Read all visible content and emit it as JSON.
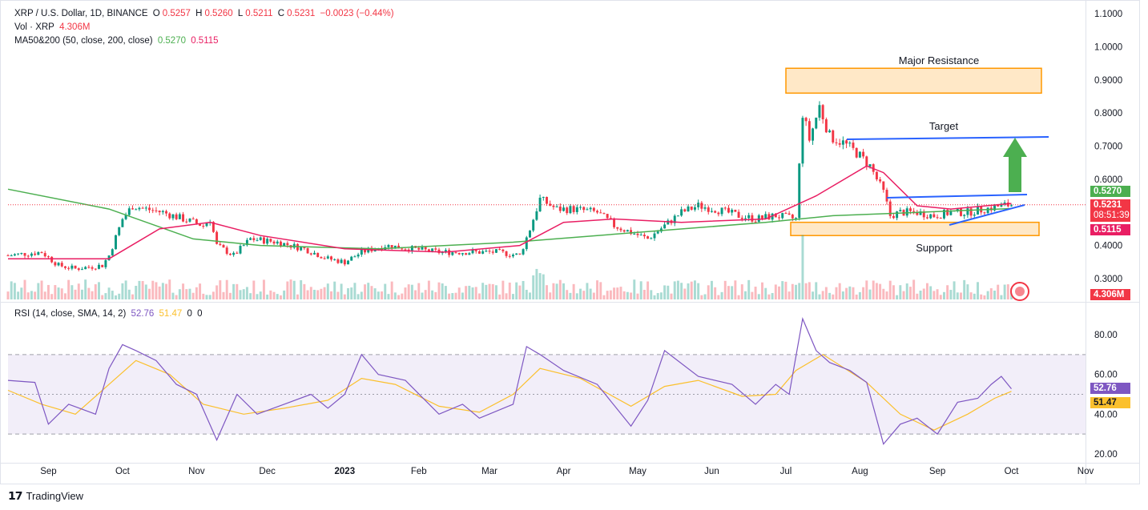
{
  "header": {
    "symbol": "XRP / U.S. Dollar, 1D, BINANCE",
    "o_label": "O",
    "o_value": "0.5257",
    "h_label": "H",
    "h_value": "0.5260",
    "l_label": "L",
    "l_value": "0.5211",
    "c_label": "C",
    "c_value": "0.5231",
    "change": "−0.0023 (−0.44%)",
    "vol_label": "Vol · XRP",
    "vol_value": "4.306M",
    "ma_label": "MA50&200 (50, close, 200, close)",
    "ma50_value": "0.5270",
    "ma200_value": "0.5115"
  },
  "rsi_header": {
    "label": "RSI (14, close, SMA, 14, 2)",
    "rsi": "52.76",
    "sma": "51.47",
    "z1": "0",
    "z2": "0"
  },
  "badges": {
    "ma50": "0.5270",
    "price": "0.5231",
    "countdown": "08:51:39",
    "ma200": "0.5115",
    "volume": "4.306M",
    "rsi": "52.76",
    "rsi_sma": "51.47"
  },
  "annotations": {
    "resistance": "Major Resistance",
    "target": "Target",
    "support": "Support"
  },
  "brand": "TradingView",
  "colors": {
    "up": "#089981",
    "down": "#f23645",
    "ma50": "#4caf50",
    "ma200": "#e91e63",
    "zone": "#ff9800",
    "line": "#2962ff",
    "arrow": "#4caf50",
    "rsi": "#7e57c2",
    "rsi_sma": "#fbc02d"
  },
  "chart_data": [
    {
      "type": "candlestick",
      "title": "XRP / U.S. Dollar, 1D, BINANCE",
      "y_ticks": [
        "1.1000",
        "1.0000",
        "0.9000",
        "0.8000",
        "0.7000",
        "0.6000",
        "0.4000",
        "0.3000"
      ],
      "ylim": [
        0.25,
        1.12
      ],
      "x_ticks": [
        "Sep",
        "Oct",
        "Nov",
        "Dec",
        "2023",
        "Feb",
        "Mar",
        "Apr",
        "May",
        "Jun",
        "Jul",
        "Aug",
        "Sep",
        "Oct",
        "Nov"
      ],
      "close_path": [
        [
          0,
          0.37
        ],
        [
          10,
          0.38
        ],
        [
          15,
          0.34
        ],
        [
          20,
          0.33
        ],
        [
          28,
          0.34
        ],
        [
          30,
          0.37
        ],
        [
          34,
          0.48
        ],
        [
          37,
          0.52
        ],
        [
          41,
          0.51
        ],
        [
          46,
          0.5
        ],
        [
          52,
          0.48
        ],
        [
          58,
          0.46
        ],
        [
          60,
          0.48
        ],
        [
          62,
          0.4
        ],
        [
          67,
          0.37
        ],
        [
          72,
          0.42
        ],
        [
          80,
          0.41
        ],
        [
          88,
          0.39
        ],
        [
          95,
          0.36
        ],
        [
          100,
          0.35
        ],
        [
          105,
          0.38
        ],
        [
          112,
          0.4
        ],
        [
          120,
          0.39
        ],
        [
          128,
          0.38
        ],
        [
          135,
          0.38
        ],
        [
          145,
          0.38
        ],
        [
          152,
          0.37
        ],
        [
          155,
          0.45
        ],
        [
          158,
          0.54
        ],
        [
          163,
          0.51
        ],
        [
          168,
          0.51
        ],
        [
          175,
          0.5
        ],
        [
          180,
          0.46
        ],
        [
          185,
          0.44
        ],
        [
          190,
          0.42
        ],
        [
          195,
          0.46
        ],
        [
          200,
          0.5
        ],
        [
          205,
          0.52
        ],
        [
          210,
          0.51
        ],
        [
          217,
          0.49
        ],
        [
          222,
          0.48
        ],
        [
          228,
          0.49
        ],
        [
          234,
          0.48
        ],
        [
          236,
          0.8
        ],
        [
          238,
          0.72
        ],
        [
          241,
          0.82
        ],
        [
          244,
          0.73
        ],
        [
          248,
          0.71
        ],
        [
          252,
          0.68
        ],
        [
          256,
          0.64
        ],
        [
          260,
          0.56
        ],
        [
          262,
          0.49
        ],
        [
          265,
          0.5
        ],
        [
          270,
          0.5
        ],
        [
          275,
          0.49
        ],
        [
          280,
          0.5
        ],
        [
          285,
          0.5
        ],
        [
          290,
          0.51
        ],
        [
          295,
          0.52
        ],
        [
          298,
          0.5231
        ]
      ],
      "ma50_path": [
        [
          0,
          0.36
        ],
        [
          30,
          0.36
        ],
        [
          45,
          0.45
        ],
        [
          60,
          0.47
        ],
        [
          75,
          0.43
        ],
        [
          100,
          0.39
        ],
        [
          130,
          0.38
        ],
        [
          152,
          0.4
        ],
        [
          165,
          0.47
        ],
        [
          180,
          0.48
        ],
        [
          200,
          0.47
        ],
        [
          225,
          0.48
        ],
        [
          240,
          0.55
        ],
        [
          255,
          0.64
        ],
        [
          260,
          0.62
        ],
        [
          270,
          0.52
        ],
        [
          280,
          0.51
        ],
        [
          298,
          0.527
        ]
      ],
      "ma200_path": [
        [
          0,
          0.57
        ],
        [
          30,
          0.51
        ],
        [
          55,
          0.42
        ],
        [
          75,
          0.4
        ],
        [
          110,
          0.39
        ],
        [
          150,
          0.41
        ],
        [
          175,
          0.43
        ],
        [
          225,
          0.47
        ],
        [
          245,
          0.49
        ],
        [
          270,
          0.5
        ],
        [
          298,
          0.5115
        ]
      ],
      "zones": [
        {
          "name": "Major Resistance",
          "from": 0.86,
          "to": 0.935
        },
        {
          "name": "Support",
          "from": 0.43,
          "to": 0.47
        }
      ]
    },
    {
      "type": "line",
      "title": "RSI (14, close, SMA, 14, 2)",
      "y_ticks": [
        "80.00",
        "60.00",
        "40.00",
        "20.00"
      ],
      "ylim": [
        15,
        90
      ],
      "bands": [
        30,
        70
      ],
      "rsi_path": [
        [
          0,
          57
        ],
        [
          8,
          56
        ],
        [
          12,
          35
        ],
        [
          18,
          45
        ],
        [
          26,
          40
        ],
        [
          30,
          63
        ],
        [
          34,
          75
        ],
        [
          38,
          72
        ],
        [
          44,
          67
        ],
        [
          50,
          55
        ],
        [
          56,
          50
        ],
        [
          62,
          27
        ],
        [
          68,
          50
        ],
        [
          74,
          40
        ],
        [
          82,
          45
        ],
        [
          90,
          50
        ],
        [
          95,
          43
        ],
        [
          100,
          50
        ],
        [
          105,
          70
        ],
        [
          110,
          60
        ],
        [
          118,
          57
        ],
        [
          128,
          40
        ],
        [
          135,
          45
        ],
        [
          140,
          38
        ],
        [
          150,
          45
        ],
        [
          154,
          74
        ],
        [
          158,
          70
        ],
        [
          165,
          62
        ],
        [
          175,
          55
        ],
        [
          185,
          34
        ],
        [
          190,
          47
        ],
        [
          195,
          72
        ],
        [
          205,
          59
        ],
        [
          215,
          55
        ],
        [
          222,
          45
        ],
        [
          228,
          55
        ],
        [
          232,
          50
        ],
        [
          236,
          88
        ],
        [
          240,
          72
        ],
        [
          244,
          66
        ],
        [
          250,
          62
        ],
        [
          255,
          56
        ],
        [
          260,
          25
        ],
        [
          265,
          35
        ],
        [
          270,
          38
        ],
        [
          276,
          30
        ],
        [
          282,
          46
        ],
        [
          288,
          48
        ],
        [
          292,
          55
        ],
        [
          295,
          59
        ],
        [
          298,
          52.76
        ]
      ],
      "sma_path": [
        [
          0,
          52
        ],
        [
          10,
          45
        ],
        [
          20,
          40
        ],
        [
          30,
          55
        ],
        [
          38,
          67
        ],
        [
          48,
          60
        ],
        [
          58,
          45
        ],
        [
          70,
          40
        ],
        [
          82,
          43
        ],
        [
          95,
          47
        ],
        [
          105,
          58
        ],
        [
          115,
          55
        ],
        [
          128,
          44
        ],
        [
          140,
          41
        ],
        [
          150,
          50
        ],
        [
          158,
          63
        ],
        [
          170,
          58
        ],
        [
          185,
          44
        ],
        [
          195,
          54
        ],
        [
          205,
          57
        ],
        [
          218,
          49
        ],
        [
          228,
          50
        ],
        [
          234,
          62
        ],
        [
          242,
          70
        ],
        [
          255,
          56
        ],
        [
          265,
          40
        ],
        [
          275,
          32
        ],
        [
          285,
          40
        ],
        [
          293,
          48
        ],
        [
          298,
          51.47
        ]
      ]
    }
  ]
}
